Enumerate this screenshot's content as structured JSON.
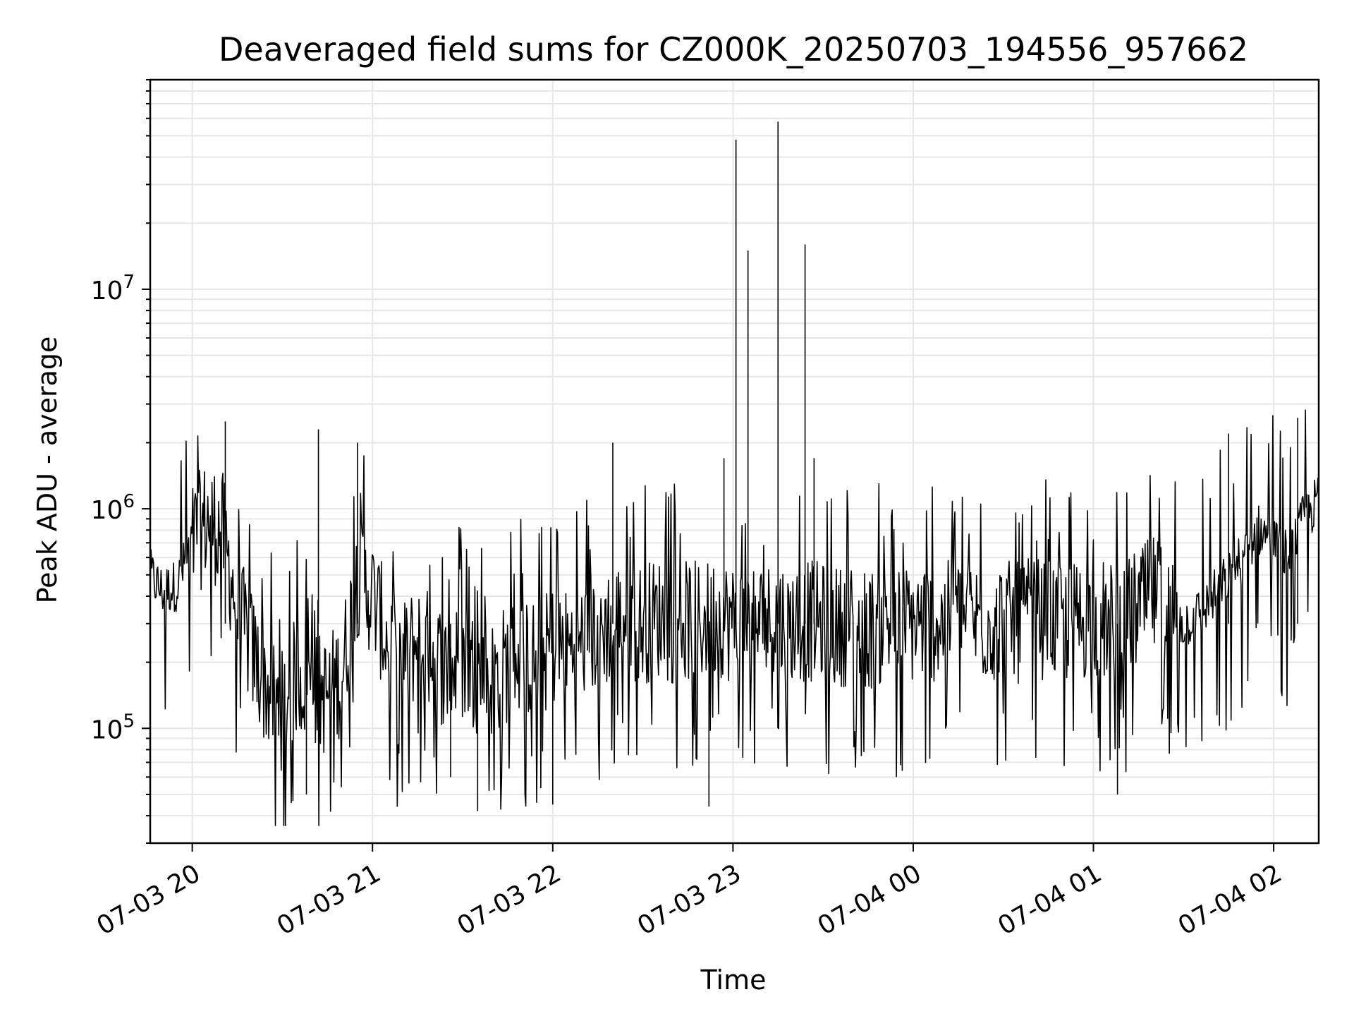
{
  "chart_data": {
    "type": "line",
    "title": "Deaveraged field sums for CZ000K_20250703_194556_957662",
    "xlabel": "Time",
    "ylabel": "Peak ADU - average",
    "yscale": "log",
    "x_range": [
      "2025-07-03 19:46",
      "2025-07-04 02:15"
    ],
    "ylim": [
      30000,
      90000000
    ],
    "x_ticks": [
      {
        "t": "2025-07-03 20:00",
        "label": "07-03 20"
      },
      {
        "t": "2025-07-03 21:00",
        "label": "07-03 21"
      },
      {
        "t": "2025-07-03 22:00",
        "label": "07-03 22"
      },
      {
        "t": "2025-07-03 23:00",
        "label": "07-03 23"
      },
      {
        "t": "2025-07-04 00:00",
        "label": "07-04 00"
      },
      {
        "t": "2025-07-04 01:00",
        "label": "07-04 01"
      },
      {
        "t": "2025-07-04 02:00",
        "label": "07-04 02"
      }
    ],
    "y_ticks": [
      {
        "value": 100000,
        "base": "10",
        "exp": "5"
      },
      {
        "value": 1000000,
        "base": "10",
        "exp": "6"
      },
      {
        "value": 10000000,
        "base": "10",
        "exp": "7"
      }
    ],
    "grid": true,
    "line_color": "#000000",
    "series": [
      {
        "points": [
          [
            "2025-07-03 19:46",
            500000
          ],
          [
            "2025-07-03 19:50",
            420000
          ],
          [
            "2025-07-03 19:55",
            450000
          ],
          [
            "2025-07-03 20:00",
            700000
          ],
          [
            "2025-07-03 20:05",
            900000
          ],
          [
            "2025-07-03 20:10",
            800000
          ],
          [
            "2025-07-03 20:15",
            350000
          ],
          [
            "2025-07-03 20:20",
            220000
          ],
          [
            "2025-07-03 20:25",
            150000
          ],
          [
            "2025-07-03 20:30",
            120000
          ],
          [
            "2025-07-03 20:35",
            180000
          ],
          [
            "2025-07-03 20:40",
            150000
          ],
          [
            "2025-07-03 20:45",
            140000
          ],
          [
            "2025-07-03 20:50",
            180000
          ],
          [
            "2025-07-03 20:55",
            500000
          ],
          [
            "2025-07-03 21:00",
            400000
          ],
          [
            "2025-07-03 21:05",
            250000
          ],
          [
            "2025-07-03 21:10",
            200000
          ],
          [
            "2025-07-03 21:15",
            250000
          ],
          [
            "2025-07-03 21:20",
            220000
          ],
          [
            "2025-07-03 21:25",
            180000
          ],
          [
            "2025-07-03 21:30",
            200000
          ],
          [
            "2025-07-03 21:35",
            180000
          ],
          [
            "2025-07-03 21:40",
            170000
          ],
          [
            "2025-07-03 21:45",
            200000
          ],
          [
            "2025-07-03 21:50",
            220000
          ],
          [
            "2025-07-03 21:55",
            200000
          ],
          [
            "2025-07-03 22:00",
            240000
          ],
          [
            "2025-07-03 22:05",
            230000
          ],
          [
            "2025-07-03 22:10",
            250000
          ],
          [
            "2025-07-03 22:15",
            280000
          ],
          [
            "2025-07-03 22:20",
            300000
          ],
          [
            "2025-07-03 22:25",
            320000
          ],
          [
            "2025-07-03 22:30",
            300000
          ],
          [
            "2025-07-03 22:35",
            320000
          ],
          [
            "2025-07-03 22:40",
            300000
          ],
          [
            "2025-07-03 22:45",
            310000
          ],
          [
            "2025-07-03 22:50",
            300000
          ],
          [
            "2025-07-03 22:55",
            330000
          ],
          [
            "2025-07-03 23:00",
            300000
          ],
          [
            "2025-07-03 23:05",
            310000
          ],
          [
            "2025-07-03 23:10",
            300000
          ],
          [
            "2025-07-03 23:15",
            320000
          ],
          [
            "2025-07-03 23:20",
            300000
          ],
          [
            "2025-07-03 23:25",
            310000
          ],
          [
            "2025-07-03 23:30",
            300000
          ],
          [
            "2025-07-03 23:35",
            290000
          ],
          [
            "2025-07-03 23:40",
            300000
          ],
          [
            "2025-07-03 23:45",
            280000
          ],
          [
            "2025-07-03 23:50",
            300000
          ],
          [
            "2025-07-03 23:55",
            290000
          ],
          [
            "2025-07-04 00:00",
            300000
          ],
          [
            "2025-07-04 00:05",
            310000
          ],
          [
            "2025-07-04 00:10",
            300000
          ],
          [
            "2025-07-04 00:15",
            320000
          ],
          [
            "2025-07-04 00:20",
            310000
          ],
          [
            "2025-07-04 00:25",
            300000
          ],
          [
            "2025-07-04 00:30",
            310000
          ],
          [
            "2025-07-04 00:35",
            300000
          ],
          [
            "2025-07-04 00:40",
            320000
          ],
          [
            "2025-07-04 00:45",
            310000
          ],
          [
            "2025-07-04 00:50",
            300000
          ],
          [
            "2025-07-04 00:55",
            310000
          ],
          [
            "2025-07-04 01:00",
            320000
          ],
          [
            "2025-07-04 01:05",
            300000
          ],
          [
            "2025-07-04 01:10",
            310000
          ],
          [
            "2025-07-04 01:15",
            350000
          ],
          [
            "2025-07-04 01:20",
            400000
          ],
          [
            "2025-07-04 01:25",
            350000
          ],
          [
            "2025-07-04 01:30",
            300000
          ],
          [
            "2025-07-04 01:35",
            330000
          ],
          [
            "2025-07-04 01:40",
            400000
          ],
          [
            "2025-07-04 01:45",
            500000
          ],
          [
            "2025-07-04 01:50",
            600000
          ],
          [
            "2025-07-04 01:55",
            800000
          ],
          [
            "2025-07-04 02:00",
            700000
          ],
          [
            "2025-07-04 02:05",
            600000
          ],
          [
            "2025-07-04 02:10",
            900000
          ],
          [
            "2025-07-04 02:15",
            1100000
          ]
        ],
        "spikes": [
          [
            "2025-07-03 22:57",
            1700000
          ],
          [
            "2025-07-03 23:01",
            48000000
          ],
          [
            "2025-07-03 23:05",
            15000000
          ],
          [
            "2025-07-03 23:15",
            58000000
          ],
          [
            "2025-07-03 23:24",
            16000000
          ],
          [
            "2025-07-03 23:27",
            1700000
          ],
          [
            "2025-07-03 20:11",
            2500000
          ],
          [
            "2025-07-03 20:42",
            2300000
          ],
          [
            "2025-07-03 20:55",
            2000000
          ],
          [
            "2025-07-03 22:20",
            2000000
          ],
          [
            "2025-07-04 01:45",
            2200000
          ],
          [
            "2025-07-04 02:08",
            2600000
          ],
          [
            "2025-07-03 21:26",
            60000
          ],
          [
            "2025-07-03 21:35",
            42000
          ],
          [
            "2025-07-03 22:52",
            44000
          ],
          [
            "2025-07-04 01:08",
            50000
          ],
          [
            "2025-07-03 20:38",
            50000
          ],
          [
            "2025-07-03 22:00",
            45000
          ]
        ]
      }
    ]
  }
}
